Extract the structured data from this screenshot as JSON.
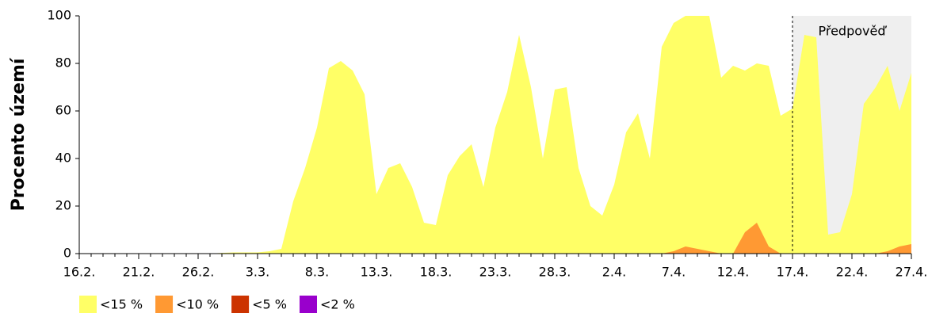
{
  "chart_data": {
    "type": "area",
    "y_label": "Procento území",
    "categories": [
      "16.2.",
      null,
      null,
      null,
      null,
      "21.2.",
      null,
      null,
      null,
      null,
      "26.2.",
      null,
      null,
      null,
      null,
      "3.3.",
      null,
      null,
      null,
      null,
      "8.3.",
      null,
      null,
      null,
      null,
      "13.3.",
      null,
      null,
      null,
      null,
      "18.3.",
      null,
      null,
      null,
      null,
      "23.3.",
      null,
      null,
      null,
      null,
      "28.3.",
      null,
      null,
      null,
      null,
      "2.4.",
      null,
      null,
      null,
      null,
      "7.4.",
      null,
      null,
      null,
      null,
      "12.4.",
      null,
      null,
      null,
      null,
      "17.4.",
      null,
      null,
      null,
      null,
      "22.4.",
      null,
      null,
      null,
      null,
      "27.4."
    ],
    "series": [
      {
        "name": "<15 %",
        "color": "#ffff66",
        "values": [
          0,
          0,
          0,
          0,
          0,
          0,
          0,
          0,
          0,
          0,
          0,
          0,
          0.3,
          0.5,
          0.5,
          0.5,
          1,
          2,
          22,
          36,
          53,
          78,
          81,
          77,
          67,
          25,
          36,
          38,
          28,
          13,
          12,
          33,
          41,
          46,
          28,
          53,
          68,
          92,
          70,
          40,
          69,
          70,
          36,
          20,
          16,
          29,
          51,
          59,
          40,
          87,
          97,
          100,
          100,
          100,
          74,
          79,
          77,
          80,
          79,
          58,
          61,
          92,
          91,
          8,
          9,
          25,
          63,
          70,
          79,
          60,
          76
        ]
      },
      {
        "name": "<10 %",
        "color": "#ff9933",
        "values": [
          0,
          0,
          0,
          0,
          0,
          0,
          0,
          0,
          0,
          0,
          0,
          0,
          0,
          0,
          0,
          0,
          0,
          0,
          0,
          0,
          0,
          0,
          0,
          0,
          0,
          0,
          0,
          0,
          0,
          0,
          0,
          0,
          0,
          0,
          0,
          0,
          0,
          0,
          0,
          0,
          0,
          0,
          0,
          0,
          0,
          0,
          0,
          0,
          0,
          0,
          1,
          3,
          2,
          1,
          0,
          0,
          9,
          13,
          3,
          0,
          0,
          0,
          0,
          0,
          0,
          0,
          0,
          0,
          1,
          3,
          4
        ]
      },
      {
        "name": "<5 %",
        "color": "#cc3300",
        "values": [
          0,
          0,
          0,
          0,
          0,
          0,
          0,
          0,
          0,
          0,
          0,
          0,
          0,
          0,
          0,
          0,
          0,
          0,
          0,
          0,
          0,
          0,
          0,
          0,
          0,
          0,
          0,
          0,
          0,
          0,
          0,
          0,
          0,
          0,
          0,
          0,
          0,
          0,
          0,
          0,
          0,
          0,
          0,
          0,
          0,
          0,
          0,
          0,
          0,
          0,
          0,
          0,
          0,
          0,
          0,
          0,
          0,
          0,
          0,
          0,
          0,
          0,
          0,
          0,
          0,
          0,
          0,
          0,
          0,
          0,
          0
        ]
      },
      {
        "name": "<2 %",
        "color": "#9900cc",
        "values": [
          0,
          0,
          0,
          0,
          0,
          0,
          0,
          0,
          0,
          0,
          0,
          0,
          0,
          0,
          0,
          0,
          0,
          0,
          0,
          0,
          0,
          0,
          0,
          0,
          0,
          0,
          0,
          0,
          0,
          0,
          0,
          0,
          0,
          0,
          0,
          0,
          0,
          0,
          0,
          0,
          0,
          0,
          0,
          0,
          0,
          0,
          0,
          0,
          0,
          0,
          0,
          0,
          0,
          0,
          0,
          0,
          0,
          0,
          0,
          0,
          0,
          0,
          0,
          0,
          0,
          0,
          0,
          0,
          0,
          0,
          0
        ]
      }
    ],
    "ylim": [
      0,
      100
    ],
    "yticks": [
      0,
      20,
      40,
      60,
      80,
      100
    ],
    "grid": false,
    "forecast": {
      "label": "Předpověď",
      "from": "17.4.",
      "color": "#efefef"
    },
    "legend": "bottom-left"
  }
}
